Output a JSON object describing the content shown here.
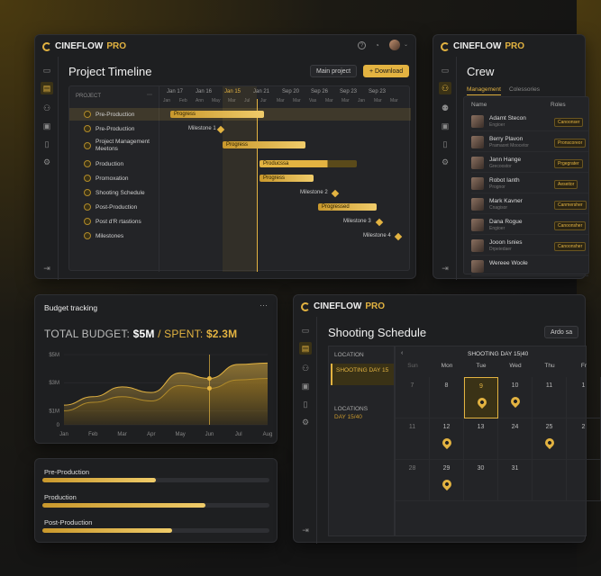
{
  "brand": {
    "name": "CINEFLOW",
    "pro": "PRO"
  },
  "timeline": {
    "title": "Project Timeline",
    "main_project": "Main project",
    "download": "+ Download",
    "col_project": "PROJECT",
    "dates": [
      "Jan 17",
      "Jan 16",
      "Jan 15",
      "Jan 21",
      "Sep 20",
      "Sep 26",
      "Sep 23",
      "Sep 23"
    ],
    "days": [
      "Jan",
      "Feb",
      "Ann",
      "May",
      "Mar",
      "Jul",
      "Jur",
      "Mar",
      "Mar",
      "Vas",
      "Mar",
      "Mar",
      "Jan",
      "Mar",
      "Mar"
    ],
    "rows": [
      "Pre-Production",
      "Pre-Production",
      "Project Management Meetons",
      "Production",
      "Promoxation",
      "Shooting Schedule",
      "Post-Production",
      "Post d'R rtastions",
      "Milestones"
    ],
    "bars": [
      "Progress",
      "Progress",
      "Producssa",
      "Progress",
      "Progressed"
    ],
    "milestones": [
      "Milestone 1",
      "Milestone 2",
      "Milestone 3",
      "Milestone 4"
    ]
  },
  "crew": {
    "title": "Crew",
    "tabs": [
      "Management",
      "Colessories"
    ],
    "col_name": "Name",
    "col_roles": "Roles",
    "members": [
      {
        "name": "Adamt Stecon",
        "sub": "Engioer",
        "role": "Canoonser"
      },
      {
        "name": "Berry Plavon",
        "sub": "Pramaont Moocetor",
        "role": "Pronscoreor"
      },
      {
        "name": "Jann Hange",
        "sub": "Grecoostor",
        "role": "Prgegrater"
      },
      {
        "name": "Robot Ianth",
        "sub": "Prognor",
        "role": "Aeseitor"
      },
      {
        "name": "Mark Kavner",
        "sub": "Cnagisor",
        "role": "Canmersher"
      },
      {
        "name": "Dana Rogue",
        "sub": "Engioer",
        "role": "Canoonsher"
      },
      {
        "name": "Jooon Isnies",
        "sub": "Drpeiedaer",
        "role": "Canoonsher"
      },
      {
        "name": "Wereee Woole",
        "sub": "",
        "role": ""
      }
    ]
  },
  "budget": {
    "title": "Budget tracking",
    "total_label": "TOTAL BUDGET:",
    "total_value": "$5M",
    "spent_label": "/ SPENT:",
    "spent_value": "$2.3M"
  },
  "chart_data": {
    "type": "area",
    "categories": [
      "Jan",
      "Feb",
      "Mar",
      "Apr",
      "May",
      "Jun",
      "Jul",
      "Aug"
    ],
    "y_ticks": [
      "$5M",
      "$3M",
      "$1M",
      "0"
    ],
    "ylim": [
      0,
      5
    ],
    "series": [
      {
        "values": [
          1.4,
          2.0,
          2.7,
          2.3,
          3.7,
          3.3,
          4.3,
          4.4
        ]
      },
      {
        "values": [
          1.0,
          1.6,
          2.0,
          1.7,
          2.8,
          2.6,
          3.2,
          3.3
        ]
      }
    ]
  },
  "phases": [
    {
      "label": "Pre-Production",
      "value": 0.5
    },
    {
      "label": "Production",
      "value": 0.72
    },
    {
      "label": "Post-Production",
      "value": 0.57
    }
  ],
  "schedule": {
    "title": "Shooting Schedule",
    "location_header": "LOCATION",
    "shooting_day_label": "SHOOTING DAY 15",
    "locations_label": "LOCATIONS",
    "day_label": "DAY 15/40",
    "nav_label": "SHOOTING DAY 15|40",
    "side_btn": "Ardo sa",
    "weekdays": [
      "Sun",
      "Mon",
      "Tue",
      "Wed",
      "Thu",
      "Fr"
    ],
    "weeks": [
      [
        "7",
        "8",
        "9",
        "10",
        "11",
        "1"
      ],
      [
        "11",
        "12",
        "13",
        "24",
        "25",
        "2"
      ],
      [
        "28",
        "29",
        "30",
        "31",
        "",
        ""
      ]
    ]
  }
}
